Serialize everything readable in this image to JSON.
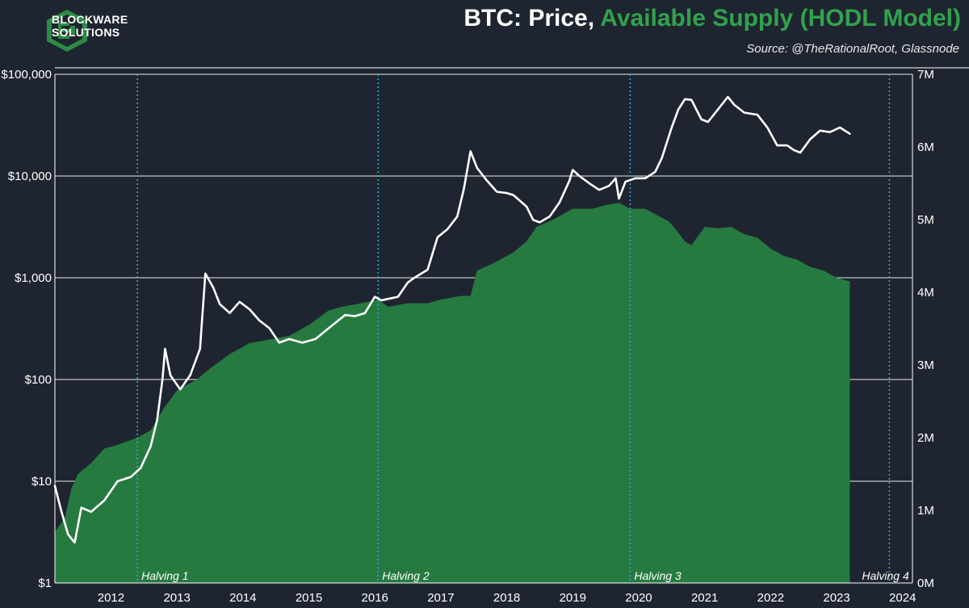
{
  "header": {
    "logo_line1": "BLOCKWARE",
    "logo_line2": "SOLUTIONS",
    "title_prefix": "BTC: Price, ",
    "title_accent": "Available Supply (HODL Model)",
    "source": "Source: @TheRationalRoot, Glassnode"
  },
  "colors": {
    "background": "#1f2530",
    "price_line": "#ffffff",
    "supply_fill": "#267a40",
    "accent": "#31a24c",
    "halving_line": "#29a8e0",
    "gridline": "#ffffff"
  },
  "chart_data": {
    "type": "line",
    "title": "BTC: Price, Available Supply (HODL Model)",
    "subtitle": "Source: @TheRationalRoot, Glassnode",
    "x_range": [
      2011.65,
      2024.65
    ],
    "x_ticks": [
      "2012",
      "2013",
      "2014",
      "2015",
      "2016",
      "2017",
      "2018",
      "2019",
      "2020",
      "2021",
      "2022",
      "2023",
      "2024"
    ],
    "y_left": {
      "scale": "log",
      "range": [
        1,
        100000
      ],
      "ticks": [
        1,
        10,
        100,
        1000,
        10000,
        100000
      ],
      "tick_labels": [
        "$1",
        "$10",
        "$100",
        "$1,000",
        "$10,000",
        "$100,000"
      ],
      "grid": true
    },
    "y_right": {
      "scale": "linear",
      "range": [
        0,
        7000000
      ],
      "ticks": [
        0,
        1000000,
        2000000,
        3000000,
        4000000,
        5000000,
        6000000,
        7000000
      ],
      "tick_labels": [
        "0M",
        "1M",
        "2M",
        "3M",
        "4M",
        "5M",
        "6M",
        "7M"
      ]
    },
    "halvings": [
      {
        "label": "Halving 1",
        "x": 2012.9
      },
      {
        "label": "Halving 2",
        "x": 2016.55
      },
      {
        "label": "Halving 3",
        "x": 2020.37
      },
      {
        "label": "Halving 4",
        "x": 2024.3
      }
    ],
    "series": [
      {
        "key": "price",
        "axis": "left",
        "style": "line",
        "x": [
          2011.65,
          2011.75,
          2011.85,
          2011.95,
          2012.05,
          2012.2,
          2012.4,
          2012.6,
          2012.8,
          2012.95,
          2013.1,
          2013.2,
          2013.28,
          2013.32,
          2013.4,
          2013.55,
          2013.7,
          2013.85,
          2013.93,
          2014.05,
          2014.15,
          2014.3,
          2014.45,
          2014.6,
          2014.75,
          2014.9,
          2015.05,
          2015.2,
          2015.4,
          2015.6,
          2015.75,
          2015.9,
          2016.05,
          2016.2,
          2016.35,
          2016.5,
          2016.6,
          2016.7,
          2016.85,
          2017.0,
          2017.1,
          2017.3,
          2017.45,
          2017.6,
          2017.75,
          2017.85,
          2017.95,
          2018.05,
          2018.2,
          2018.35,
          2018.5,
          2018.6,
          2018.8,
          2018.9,
          2019.0,
          2019.15,
          2019.3,
          2019.45,
          2019.5,
          2019.6,
          2019.75,
          2019.9,
          2020.05,
          2020.15,
          2020.2,
          2020.3,
          2020.45,
          2020.6,
          2020.75,
          2020.85,
          2021.0,
          2021.1,
          2021.2,
          2021.3,
          2021.45,
          2021.55,
          2021.7,
          2021.85,
          2021.95,
          2022.1,
          2022.3,
          2022.45,
          2022.6,
          2022.75,
          2022.85,
          2022.95,
          2023.1,
          2023.25,
          2023.4,
          2023.55,
          2023.7
        ],
        "values": [
          9,
          5,
          3,
          2.5,
          5.5,
          5,
          6.5,
          10,
          11,
          13.5,
          22,
          40,
          100,
          200,
          110,
          80,
          110,
          200,
          1100,
          800,
          550,
          450,
          580,
          490,
          380,
          320,
          230,
          250,
          230,
          250,
          300,
          360,
          430,
          420,
          450,
          650,
          600,
          620,
          650,
          900,
          1000,
          1200,
          2500,
          3000,
          4000,
          7500,
          17500,
          12000,
          9000,
          7000,
          6800,
          6500,
          5000,
          3700,
          3500,
          4000,
          5500,
          9000,
          11500,
          10000,
          8500,
          7300,
          8000,
          9500,
          6000,
          8800,
          9500,
          9500,
          11000,
          15000,
          30000,
          45000,
          57000,
          56000,
          36000,
          34000,
          45000,
          60000,
          50000,
          42000,
          40000,
          30000,
          20000,
          20000,
          18000,
          17000,
          23000,
          28000,
          27000,
          30000,
          26000
        ]
      },
      {
        "key": "available_supply",
        "axis": "right",
        "style": "area",
        "x": [
          2011.65,
          2011.8,
          2011.9,
          2012.0,
          2012.2,
          2012.4,
          2012.6,
          2012.9,
          2013.1,
          2013.3,
          2013.5,
          2013.8,
          2014.0,
          2014.3,
          2014.6,
          2014.9,
          2015.2,
          2015.5,
          2015.8,
          2016.0,
          2016.3,
          2016.55,
          2016.7,
          2017.0,
          2017.3,
          2017.5,
          2017.8,
          2017.95,
          2018.05,
          2018.3,
          2018.6,
          2018.8,
          2018.95,
          2019.2,
          2019.5,
          2019.8,
          2020.0,
          2020.2,
          2020.37,
          2020.6,
          2020.8,
          2020.95,
          2021.05,
          2021.2,
          2021.3,
          2021.5,
          2021.7,
          2021.9,
          2022.1,
          2022.3,
          2022.5,
          2022.7,
          2022.9,
          2023.1,
          2023.3,
          2023.5,
          2023.7
        ],
        "values": [
          700000,
          900000,
          1300000,
          1500000,
          1650000,
          1850000,
          1900000,
          2000000,
          2100000,
          2400000,
          2650000,
          2800000,
          2950000,
          3150000,
          3300000,
          3350000,
          3400000,
          3550000,
          3750000,
          3800000,
          3850000,
          3900000,
          3800000,
          3850000,
          3850000,
          3900000,
          3950000,
          3950000,
          4300000,
          4400000,
          4550000,
          4700000,
          4900000,
          5000000,
          5150000,
          5150000,
          5200000,
          5230000,
          5150000,
          5150000,
          5050000,
          4980000,
          4880000,
          4700000,
          4650000,
          4900000,
          4880000,
          4900000,
          4800000,
          4750000,
          4600000,
          4500000,
          4450000,
          4350000,
          4300000,
          4200000,
          4150000
        ]
      }
    ]
  }
}
